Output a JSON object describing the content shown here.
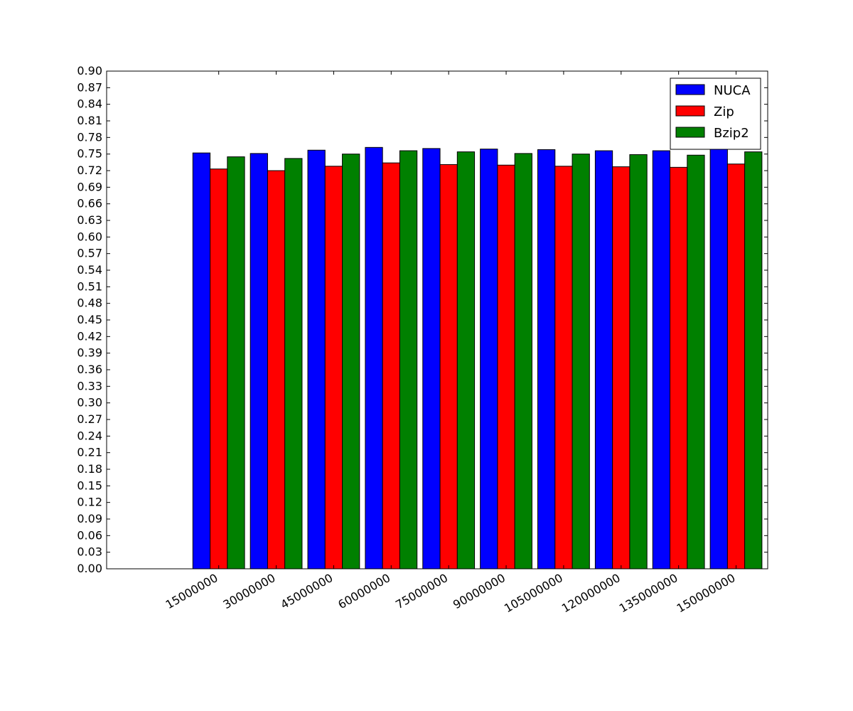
{
  "chart_data": {
    "type": "bar",
    "categories": [
      "15000000",
      "30000000",
      "45000000",
      "60000000",
      "75000000",
      "90000000",
      "105000000",
      "120000000",
      "135000000",
      "150000000"
    ],
    "series": [
      {
        "name": "NUCA",
        "color": "#0000ff",
        "values": [
          0.752,
          0.751,
          0.757,
          0.762,
          0.76,
          0.759,
          0.758,
          0.756,
          0.756,
          0.761
        ]
      },
      {
        "name": "Zip",
        "color": "#ff0000",
        "values": [
          0.723,
          0.72,
          0.728,
          0.734,
          0.731,
          0.73,
          0.728,
          0.727,
          0.726,
          0.732
        ]
      },
      {
        "name": "Bzip2",
        "color": "#008000",
        "values": [
          0.745,
          0.742,
          0.75,
          0.756,
          0.754,
          0.751,
          0.75,
          0.749,
          0.748,
          0.754
        ]
      }
    ],
    "title": "",
    "xlabel": "",
    "ylabel": "",
    "ylim": [
      0,
      0.9
    ],
    "xlim": [
      -1.5,
      10
    ],
    "yticks": [
      "0.00",
      "0.03",
      "0.06",
      "0.09",
      "0.12",
      "0.15",
      "0.18",
      "0.21",
      "0.24",
      "0.27",
      "0.30",
      "0.33",
      "0.36",
      "0.39",
      "0.42",
      "0.45",
      "0.48",
      "0.51",
      "0.54",
      "0.57",
      "0.60",
      "0.63",
      "0.66",
      "0.69",
      "0.72",
      "0.75",
      "0.78",
      "0.81",
      "0.84",
      "0.87",
      "0.90"
    ],
    "grid": false,
    "legend_position": "top-right"
  }
}
